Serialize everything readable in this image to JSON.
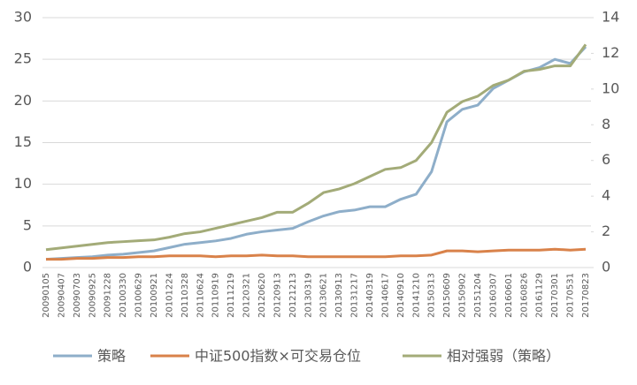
{
  "chart_data": {
    "type": "line",
    "categories": [
      "20090105",
      "20090407",
      "20090703",
      "20090925",
      "20091228",
      "20100330",
      "20100629",
      "20100921",
      "20101224",
      "20110328",
      "20110624",
      "20110919",
      "20111219",
      "20120321",
      "20120620",
      "20120913",
      "20121213",
      "20130319",
      "20130621",
      "20130913",
      "20131217",
      "20140319",
      "20140617",
      "20140910",
      "20141210",
      "20150313",
      "20150609",
      "20150902",
      "20151204",
      "20160307",
      "20160601",
      "20160826",
      "20161129",
      "20170301",
      "20170531",
      "20170823"
    ],
    "series": [
      {
        "name": "策略",
        "color": "#8eaec9",
        "axis": "y",
        "values": [
          1.0,
          1.1,
          1.2,
          1.3,
          1.5,
          1.6,
          1.8,
          2.0,
          2.4,
          2.8,
          3.0,
          3.2,
          3.5,
          4.0,
          4.3,
          4.5,
          4.7,
          5.5,
          6.2,
          6.7,
          6.9,
          7.3,
          7.3,
          8.2,
          8.8,
          11.5,
          17.5,
          19.0,
          19.5,
          21.5,
          22.5,
          23.5,
          24.0,
          25.0,
          24.5,
          26.5
        ]
      },
      {
        "name": "中证500指数×可交易仓位",
        "color": "#d9824a",
        "axis": "y",
        "values": [
          1.0,
          1.0,
          1.1,
          1.1,
          1.2,
          1.2,
          1.3,
          1.3,
          1.4,
          1.4,
          1.4,
          1.3,
          1.4,
          1.4,
          1.5,
          1.4,
          1.4,
          1.3,
          1.3,
          1.3,
          1.3,
          1.3,
          1.3,
          1.4,
          1.4,
          1.5,
          2.0,
          2.0,
          1.9,
          2.0,
          2.1,
          2.1,
          2.1,
          2.2,
          2.1,
          2.2
        ]
      },
      {
        "name": "相对强弱（策略）",
        "color": "#a3ab78",
        "axis": "y2",
        "values": [
          1.0,
          1.1,
          1.2,
          1.3,
          1.4,
          1.45,
          1.5,
          1.55,
          1.7,
          1.9,
          2.0,
          2.2,
          2.4,
          2.6,
          2.8,
          3.1,
          3.1,
          3.6,
          4.2,
          4.4,
          4.7,
          5.1,
          5.5,
          5.6,
          6.0,
          7.0,
          8.7,
          9.3,
          9.6,
          10.2,
          10.5,
          11.0,
          11.1,
          11.3,
          11.3,
          12.5
        ]
      }
    ],
    "ylim": [
      0,
      30
    ],
    "yticks": [
      0,
      5,
      10,
      15,
      20,
      25,
      30
    ],
    "y2lim": [
      0,
      14
    ],
    "y2ticks": [
      0,
      2,
      4,
      6,
      8,
      10,
      12,
      14
    ],
    "grid": true
  }
}
